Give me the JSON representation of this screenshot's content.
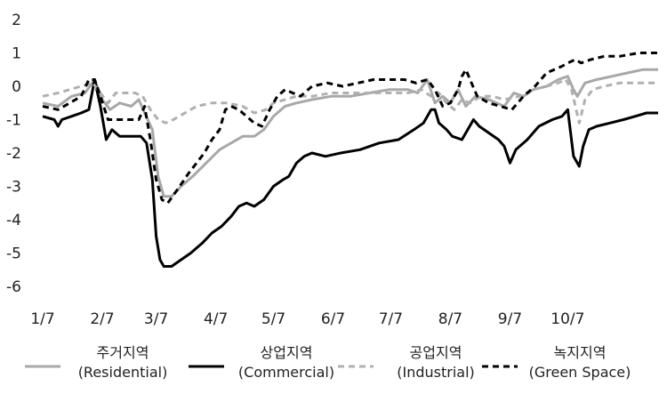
{
  "chart_data": {
    "type": "line",
    "title": "",
    "xlabel": "",
    "ylabel": "",
    "ylim": [
      -6,
      2
    ],
    "yticks": [
      2,
      1,
      0,
      -1,
      -2,
      -3,
      -4,
      -5,
      -6
    ],
    "xlim": [
      0,
      320
    ],
    "x_ticks": [
      {
        "x": 0,
        "label": "1/7"
      },
      {
        "x": 31,
        "label": "2/7"
      },
      {
        "x": 59,
        "label": "3/7"
      },
      {
        "x": 90,
        "label": "4/7"
      },
      {
        "x": 120,
        "label": "5/7"
      },
      {
        "x": 151,
        "label": "6/7"
      },
      {
        "x": 181,
        "label": "7/7"
      },
      {
        "x": 212,
        "label": "8/7"
      },
      {
        "x": 243,
        "label": "9/7"
      },
      {
        "x": 273,
        "label": "10/7"
      }
    ],
    "grid": false,
    "legend_position": "bottom",
    "series": [
      {
        "name": "주거지역\n(Residential)",
        "color": "#a8a8a8",
        "dash": "solid",
        "points": [
          [
            0,
            -0.5
          ],
          [
            8,
            -0.6
          ],
          [
            15,
            -0.3
          ],
          [
            22,
            -0.2
          ],
          [
            27,
            0.2
          ],
          [
            31,
            -0.4
          ],
          [
            35,
            -0.7
          ],
          [
            40,
            -0.5
          ],
          [
            46,
            -0.6
          ],
          [
            50,
            -0.4
          ],
          [
            53,
            -0.8
          ],
          [
            57,
            -1.3
          ],
          [
            60,
            -2.7
          ],
          [
            63,
            -3.3
          ],
          [
            67,
            -3.3
          ],
          [
            72,
            -3.0
          ],
          [
            78,
            -2.7
          ],
          [
            85,
            -2.3
          ],
          [
            92,
            -1.9
          ],
          [
            98,
            -1.7
          ],
          [
            104,
            -1.5
          ],
          [
            110,
            -1.5
          ],
          [
            115,
            -1.3
          ],
          [
            120,
            -0.9
          ],
          [
            126,
            -0.6
          ],
          [
            132,
            -0.5
          ],
          [
            140,
            -0.4
          ],
          [
            150,
            -0.3
          ],
          [
            160,
            -0.3
          ],
          [
            170,
            -0.2
          ],
          [
            180,
            -0.1
          ],
          [
            190,
            -0.1
          ],
          [
            195,
            -0.2
          ],
          [
            200,
            0.2
          ],
          [
            204,
            -0.5
          ],
          [
            208,
            -0.3
          ],
          [
            212,
            -0.5
          ],
          [
            216,
            -0.1
          ],
          [
            220,
            -0.6
          ],
          [
            225,
            -0.3
          ],
          [
            232,
            -0.4
          ],
          [
            240,
            -0.6
          ],
          [
            245,
            -0.2
          ],
          [
            250,
            -0.3
          ],
          [
            255,
            -0.1
          ],
          [
            262,
            0.0
          ],
          [
            268,
            0.2
          ],
          [
            273,
            0.3
          ],
          [
            276,
            -0.1
          ],
          [
            278,
            -0.3
          ],
          [
            282,
            0.1
          ],
          [
            288,
            0.2
          ],
          [
            296,
            0.3
          ],
          [
            304,
            0.4
          ],
          [
            312,
            0.5
          ],
          [
            320,
            0.5
          ]
        ]
      },
      {
        "name": "상업지역\n(Commercial)",
        "color": "#000000",
        "dash": "solid",
        "points": [
          [
            0,
            -0.9
          ],
          [
            6,
            -1.0
          ],
          [
            8,
            -1.2
          ],
          [
            10,
            -1.0
          ],
          [
            15,
            -0.9
          ],
          [
            20,
            -0.8
          ],
          [
            24,
            -0.7
          ],
          [
            27,
            0.2
          ],
          [
            30,
            -0.6
          ],
          [
            33,
            -1.6
          ],
          [
            36,
            -1.3
          ],
          [
            40,
            -1.5
          ],
          [
            47,
            -1.5
          ],
          [
            51,
            -1.5
          ],
          [
            54,
            -1.7
          ],
          [
            57,
            -2.8
          ],
          [
            59,
            -4.5
          ],
          [
            61,
            -5.2
          ],
          [
            63,
            -5.4
          ],
          [
            67,
            -5.4
          ],
          [
            72,
            -5.2
          ],
          [
            77,
            -5.0
          ],
          [
            83,
            -4.7
          ],
          [
            88,
            -4.4
          ],
          [
            93,
            -4.2
          ],
          [
            98,
            -3.9
          ],
          [
            102,
            -3.6
          ],
          [
            106,
            -3.5
          ],
          [
            110,
            -3.6
          ],
          [
            115,
            -3.4
          ],
          [
            120,
            -3.0
          ],
          [
            125,
            -2.8
          ],
          [
            128,
            -2.7
          ],
          [
            132,
            -2.3
          ],
          [
            136,
            -2.1
          ],
          [
            140,
            -2.0
          ],
          [
            147,
            -2.1
          ],
          [
            155,
            -2.0
          ],
          [
            165,
            -1.9
          ],
          [
            175,
            -1.7
          ],
          [
            185,
            -1.6
          ],
          [
            193,
            -1.3
          ],
          [
            198,
            -1.1
          ],
          [
            202,
            -0.7
          ],
          [
            204,
            -0.7
          ],
          [
            206,
            -1.1
          ],
          [
            210,
            -1.3
          ],
          [
            213,
            -1.5
          ],
          [
            218,
            -1.6
          ],
          [
            222,
            -1.2
          ],
          [
            224,
            -1.0
          ],
          [
            227,
            -1.2
          ],
          [
            232,
            -1.4
          ],
          [
            237,
            -1.6
          ],
          [
            240,
            -1.8
          ],
          [
            243,
            -2.3
          ],
          [
            246,
            -1.9
          ],
          [
            252,
            -1.6
          ],
          [
            258,
            -1.2
          ],
          [
            265,
            -1.0
          ],
          [
            270,
            -0.9
          ],
          [
            273,
            -0.7
          ],
          [
            276,
            -2.1
          ],
          [
            279,
            -2.4
          ],
          [
            281,
            -1.8
          ],
          [
            284,
            -1.3
          ],
          [
            288,
            -1.2
          ],
          [
            295,
            -1.1
          ],
          [
            302,
            -1.0
          ],
          [
            308,
            -0.9
          ],
          [
            314,
            -0.8
          ],
          [
            320,
            -0.8
          ]
        ]
      },
      {
        "name": "공업지역\n(Industrial)",
        "color": "#b0b0b0",
        "dash": "dashed",
        "points": [
          [
            0,
            -0.3
          ],
          [
            8,
            -0.2
          ],
          [
            14,
            -0.1
          ],
          [
            20,
            0.0
          ],
          [
            26,
            0.1
          ],
          [
            30,
            -0.2
          ],
          [
            34,
            -0.5
          ],
          [
            38,
            -0.2
          ],
          [
            44,
            -0.2
          ],
          [
            48,
            -0.2
          ],
          [
            52,
            -0.3
          ],
          [
            56,
            -0.7
          ],
          [
            60,
            -1.0
          ],
          [
            64,
            -1.1
          ],
          [
            68,
            -1.0
          ],
          [
            74,
            -0.8
          ],
          [
            80,
            -0.6
          ],
          [
            88,
            -0.5
          ],
          [
            96,
            -0.5
          ],
          [
            104,
            -0.6
          ],
          [
            110,
            -0.8
          ],
          [
            116,
            -0.7
          ],
          [
            120,
            -0.5
          ],
          [
            126,
            -0.4
          ],
          [
            132,
            -0.3
          ],
          [
            140,
            -0.3
          ],
          [
            150,
            -0.2
          ],
          [
            160,
            -0.2
          ],
          [
            170,
            -0.2
          ],
          [
            180,
            -0.2
          ],
          [
            190,
            -0.2
          ],
          [
            197,
            -0.1
          ],
          [
            202,
            -0.3
          ],
          [
            206,
            -0.2
          ],
          [
            210,
            -0.5
          ],
          [
            214,
            -0.7
          ],
          [
            218,
            -0.4
          ],
          [
            222,
            -0.5
          ],
          [
            228,
            -0.3
          ],
          [
            234,
            -0.3
          ],
          [
            240,
            -0.4
          ],
          [
            248,
            -0.3
          ],
          [
            255,
            -0.1
          ],
          [
            262,
            0.0
          ],
          [
            268,
            0.1
          ],
          [
            272,
            0.2
          ],
          [
            275,
            -0.1
          ],
          [
            277,
            -0.6
          ],
          [
            279,
            -1.1
          ],
          [
            282,
            -0.4
          ],
          [
            286,
            -0.1
          ],
          [
            292,
            0.0
          ],
          [
            300,
            0.1
          ],
          [
            308,
            0.1
          ],
          [
            314,
            0.1
          ],
          [
            320,
            0.1
          ]
        ]
      },
      {
        "name": "녹지지역\n(Green Space)",
        "color": "#000000",
        "dash": "dashed",
        "points": [
          [
            0,
            -0.6
          ],
          [
            8,
            -0.7
          ],
          [
            14,
            -0.5
          ],
          [
            20,
            -0.3
          ],
          [
            24,
            0.2
          ],
          [
            27,
            0.2
          ],
          [
            30,
            -0.3
          ],
          [
            34,
            -1.0
          ],
          [
            38,
            -1.0
          ],
          [
            44,
            -1.0
          ],
          [
            50,
            -1.0
          ],
          [
            53,
            -0.6
          ],
          [
            56,
            -1.6
          ],
          [
            59,
            -2.8
          ],
          [
            62,
            -3.4
          ],
          [
            65,
            -3.5
          ],
          [
            70,
            -3.1
          ],
          [
            76,
            -2.6
          ],
          [
            80,
            -2.3
          ],
          [
            84,
            -2.0
          ],
          [
            88,
            -1.6
          ],
          [
            92,
            -1.3
          ],
          [
            95,
            -0.7
          ],
          [
            98,
            -0.6
          ],
          [
            102,
            -0.7
          ],
          [
            106,
            -0.9
          ],
          [
            110,
            -1.1
          ],
          [
            114,
            -1.2
          ],
          [
            118,
            -0.7
          ],
          [
            122,
            -0.3
          ],
          [
            126,
            -0.1
          ],
          [
            130,
            -0.2
          ],
          [
            134,
            -0.3
          ],
          [
            140,
            0.0
          ],
          [
            148,
            0.1
          ],
          [
            156,
            0.0
          ],
          [
            164,
            0.1
          ],
          [
            172,
            0.2
          ],
          [
            180,
            0.2
          ],
          [
            188,
            0.2
          ],
          [
            194,
            0.1
          ],
          [
            200,
            0.2
          ],
          [
            204,
            -0.1
          ],
          [
            208,
            -0.6
          ],
          [
            212,
            -0.5
          ],
          [
            216,
            -0.1
          ],
          [
            218,
            0.3
          ],
          [
            220,
            0.5
          ],
          [
            223,
            0.1
          ],
          [
            226,
            -0.3
          ],
          [
            232,
            -0.5
          ],
          [
            238,
            -0.6
          ],
          [
            244,
            -0.7
          ],
          [
            250,
            -0.3
          ],
          [
            256,
            0.0
          ],
          [
            262,
            0.4
          ],
          [
            266,
            0.5
          ],
          [
            270,
            0.6
          ],
          [
            273,
            0.7
          ],
          [
            277,
            0.8
          ],
          [
            280,
            0.7
          ],
          [
            285,
            0.8
          ],
          [
            292,
            0.9
          ],
          [
            300,
            0.9
          ],
          [
            310,
            1.0
          ],
          [
            320,
            1.0
          ]
        ]
      }
    ]
  }
}
